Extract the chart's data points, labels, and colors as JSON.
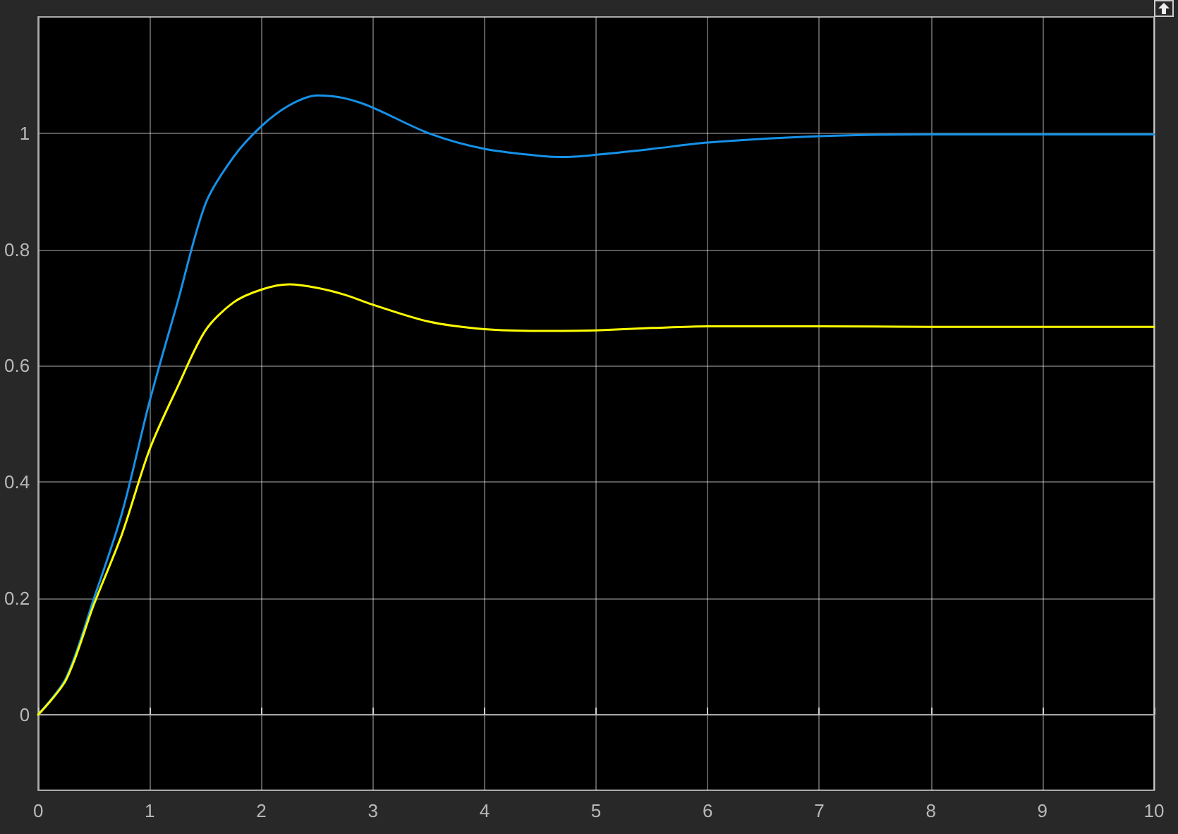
{
  "chart_data": {
    "type": "line",
    "x": [
      0,
      0.25,
      0.5,
      0.75,
      1,
      1.25,
      1.5,
      1.75,
      2,
      2.25,
      2.5,
      2.75,
      3,
      3.5,
      4,
      4.5,
      4.7,
      5,
      5.5,
      6,
      7,
      8,
      9,
      10
    ],
    "series": [
      {
        "color": "#1591e8",
        "values": [
          0,
          0.063,
          0.2,
          0.346,
          0.54,
          0.71,
          0.879,
          0.959,
          1.012,
          1.048,
          1.065,
          1.06,
          1.044,
          1.0,
          0.973,
          0.961,
          0.959,
          0.963,
          0.973,
          0.984,
          0.995,
          0.998,
          0.998,
          0.998
        ]
      },
      {
        "color": "#ffff00",
        "values": [
          0,
          0.06,
          0.19,
          0.31,
          0.457,
          0.564,
          0.661,
          0.709,
          0.731,
          0.74,
          0.734,
          0.722,
          0.705,
          0.676,
          0.663,
          0.66,
          0.66,
          0.661,
          0.665,
          0.668,
          0.668,
          0.667,
          0.667,
          0.667
        ]
      }
    ],
    "xlim": [
      0,
      10
    ],
    "xticks": [
      0,
      1,
      2,
      3,
      4,
      5,
      6,
      7,
      8,
      9,
      10
    ],
    "ylim": [
      -0.13,
      1.2
    ],
    "yticks": [
      0,
      0.2,
      0.4,
      0.6,
      0.8,
      1
    ],
    "grid": true,
    "marker": "none",
    "line_style": "solid"
  }
}
